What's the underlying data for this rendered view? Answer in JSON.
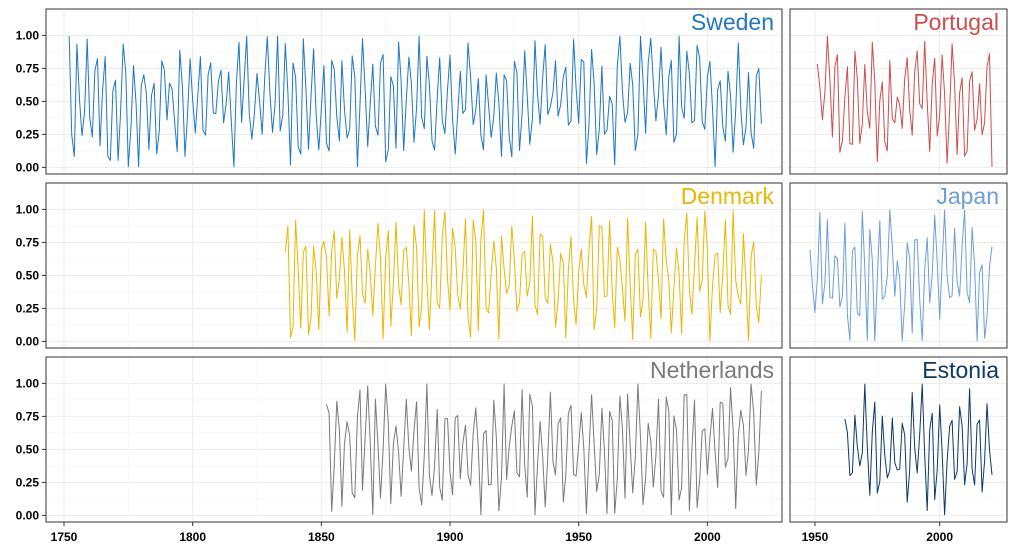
{
  "chart_data": [
    {
      "type": "line",
      "title": "Sweden",
      "color": "#1f78c1",
      "xlim": [
        1743,
        2029
      ],
      "ylim": [
        -0.05,
        1.2
      ],
      "yticks": [
        "0.00",
        "0.25",
        "0.50",
        "0.75",
        "1.00"
      ],
      "xticks": [
        "1750",
        "1800",
        "1850",
        "1900",
        "1950",
        "2000"
      ],
      "series": [
        {
          "name": "Sweden",
          "x_start": 1752,
          "x_end": 2021,
          "seed": 11
        }
      ]
    },
    {
      "type": "line",
      "title": "Portugal",
      "color": "#cd4d4d",
      "xlim": [
        1940,
        2027
      ],
      "ylim": [
        -0.05,
        1.2
      ],
      "yticks": [],
      "xticks": [
        "1950",
        "2000"
      ],
      "series": [
        {
          "name": "Portugal",
          "x_start": 1951,
          "x_end": 2021,
          "seed": 23
        }
      ]
    },
    {
      "type": "line",
      "title": "Denmark",
      "color": "#e8b800",
      "xlim": [
        1743,
        2029
      ],
      "ylim": [
        -0.05,
        1.2
      ],
      "yticks": [
        "0.00",
        "0.25",
        "0.50",
        "0.75",
        "1.00"
      ],
      "xticks": [
        "1750",
        "1800",
        "1850",
        "1900",
        "1950",
        "2000"
      ],
      "series": [
        {
          "name": "Denmark",
          "x_start": 1836,
          "x_end": 2021,
          "seed": 37
        }
      ]
    },
    {
      "type": "line",
      "title": "Japan",
      "color": "#6c9fd6",
      "xlim": [
        1940,
        2027
      ],
      "ylim": [
        -0.05,
        1.2
      ],
      "yticks": [],
      "xticks": [
        "1950",
        "2000"
      ],
      "series": [
        {
          "name": "Japan",
          "x_start": 1948,
          "x_end": 2021,
          "seed": 41
        }
      ]
    },
    {
      "type": "line",
      "title": "Netherlands",
      "color": "#7a7a7a",
      "xlim": [
        1743,
        2029
      ],
      "ylim": [
        -0.05,
        1.2
      ],
      "yticks": [
        "0.00",
        "0.25",
        "0.50",
        "0.75",
        "1.00"
      ],
      "xticks": [
        "1750",
        "1800",
        "1850",
        "1900",
        "1950",
        "2000"
      ],
      "series": [
        {
          "name": "Netherlands",
          "x_start": 1852,
          "x_end": 2021,
          "seed": 53
        }
      ]
    },
    {
      "type": "line",
      "title": "Estonia",
      "color": "#0b3a66",
      "xlim": [
        1940,
        2027
      ],
      "ylim": [
        -0.05,
        1.2
      ],
      "yticks": [],
      "xticks": [
        "1950",
        "2000"
      ],
      "series": [
        {
          "name": "Estonia",
          "x_start": 1962,
          "x_end": 2021,
          "seed": 67
        }
      ]
    }
  ]
}
